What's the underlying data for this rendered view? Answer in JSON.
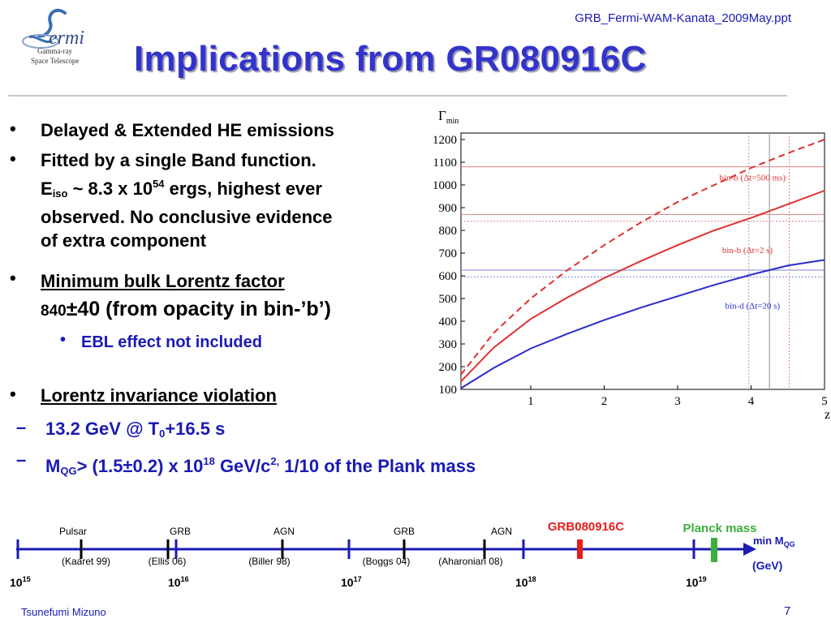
{
  "header": {
    "filename": "GRB_Fermi-WAM-Kanata_2009May.ppt"
  },
  "logo": {
    "name": "ermi",
    "line1": "Gamma-ray",
    "line2": "Space Telescope"
  },
  "title": "Implications from GR080916C",
  "bullets": {
    "b1": "Delayed & Extended HE emissions",
    "b2_line1": "Fitted by a single Band function.",
    "b2_e": "E",
    "b2_iso": "iso",
    "b2_approx": " ~ 8.3 x 10",
    "b2_exp": "54",
    "b2_rest": " ergs, highest ever",
    "b2_line3": "observed. No conclusive evidence",
    "b2_line4": "of extra component",
    "b3_title": "Minimum bulk Lorentz factor",
    "b3_small": "840",
    "b3_value": "±40 (from opacity in bin-’b’)",
    "b3_sub": "EBL effect not included",
    "b4_title": "Lorentz invariance violation",
    "d1_a": "13.2 GeV @ T",
    "d1_sub": "0",
    "d1_b": "+16.5 s",
    "d2_a": "M",
    "d2_sub": "QG",
    "d2_b": "> (1.5±0.2) x 10",
    "d2_exp": "18",
    "d2_c": " GeV/c",
    "d2_exp2": "2,",
    "d2_d": " 1/10 of the Plank mass",
    "bullet_char": "•",
    "dash_char": "–"
  },
  "chart_data": {
    "type": "line",
    "ylabel": "Γmin",
    "xlabel": "z",
    "xlim": [
      0.05,
      5
    ],
    "ylim": [
      100,
      1200
    ],
    "xticks": [
      1,
      2,
      3,
      4,
      5
    ],
    "yticks": [
      100,
      200,
      300,
      400,
      500,
      600,
      700,
      800,
      900,
      1000,
      1100,
      1200
    ],
    "x": [
      0.05,
      0.5,
      1,
      1.5,
      2,
      2.5,
      3,
      3.5,
      4,
      4.5,
      5
    ],
    "series": [
      {
        "name": "bin-b (Δt=500 ms)",
        "style": "dashed",
        "color": "#e03030",
        "values": [
          165,
          350,
          500,
          625,
          735,
          835,
          925,
          1000,
          1075,
          1140,
          1200
        ]
      },
      {
        "name": "bin-b (Δt=2 s)",
        "style": "solid",
        "color": "#e03030",
        "values": [
          135,
          285,
          410,
          505,
          590,
          665,
          735,
          800,
          855,
          915,
          975
        ]
      },
      {
        "name": "bin-d (Δt=20 s)",
        "style": "solid",
        "color": "#2b2bcc",
        "values": [
          105,
          195,
          280,
          345,
          405,
          460,
          510,
          560,
          605,
          645,
          670
        ]
      }
    ],
    "hlines": [
      {
        "y": 1080,
        "color": "#e78080",
        "style": "solid"
      },
      {
        "y": 870,
        "color": "#e78080",
        "style": "solid"
      },
      {
        "y": 840,
        "color": "#e78080",
        "style": "dotted"
      },
      {
        "y": 625,
        "color": "#8080e0",
        "style": "solid"
      },
      {
        "y": 595,
        "color": "#8080e0",
        "style": "dotted"
      }
    ],
    "vlines": [
      {
        "x": 3.97,
        "color": "#a0a0b8",
        "style": "dotted"
      },
      {
        "x": 4.25,
        "color": "#909090",
        "style": "solid"
      },
      {
        "x": 4.52,
        "color": "#e78080",
        "style": "dotted"
      }
    ]
  },
  "scale": {
    "ticks": [
      {
        "label": "10",
        "exp": "15"
      },
      {
        "label": "10",
        "exp": "16"
      },
      {
        "label": "10",
        "exp": "17"
      },
      {
        "label": "10",
        "exp": "18"
      },
      {
        "label": "10",
        "exp": "19"
      }
    ],
    "objects": [
      {
        "top": "Pulsar",
        "bottom": "(Kaaret 99)"
      },
      {
        "top": "GRB",
        "bottom": "(Ellis 06)"
      },
      {
        "top": "AGN",
        "bottom": "(Biller 98)"
      },
      {
        "top": "GRB",
        "bottom": "(Boggs 04)"
      },
      {
        "top": "AGN",
        "bottom": "(Aharonian 08)"
      }
    ],
    "grb_label": "GRB080916C",
    "planck_label": "Planck mass",
    "axis_label_a": "min M",
    "axis_label_sub": "QG",
    "axis_unit": "(GeV)",
    "colors": {
      "axis": "#1a1ab5",
      "grb": "#e81c1c",
      "planck": "#3cae3c"
    }
  },
  "footer": {
    "author": "Tsunefumi Mizuno",
    "page": "7"
  }
}
